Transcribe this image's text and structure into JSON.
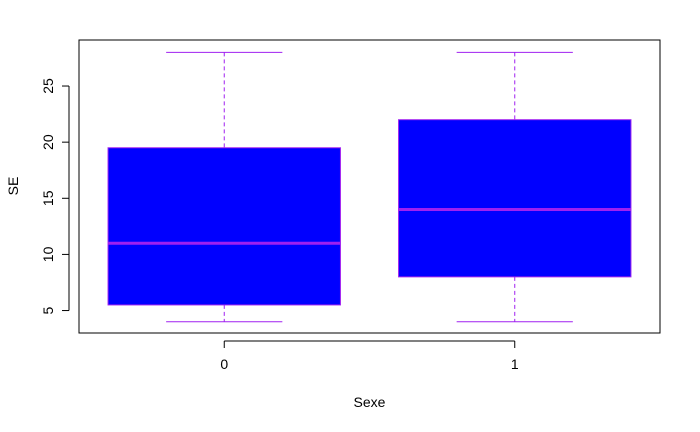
{
  "chart_data": {
    "type": "boxplot",
    "title": "",
    "xlabel": "Sexe",
    "ylabel": "SE",
    "categories": [
      "0",
      "1"
    ],
    "boxes": [
      {
        "category": "0",
        "min": 4,
        "q1": 5.5,
        "median": 11,
        "q3": 19.5,
        "max": 28
      },
      {
        "category": "1",
        "min": 4,
        "q1": 8,
        "median": 14,
        "q3": 22,
        "max": 28
      }
    ],
    "ylim": [
      3,
      29.1
    ],
    "yticks": [
      "5",
      "10",
      "15",
      "20",
      "25"
    ],
    "grid": false,
    "legend": "none",
    "colors": {
      "box_fill": "#0000ff",
      "box_border": "#a020f0",
      "whisker": "#a020f0",
      "axis": "#000000"
    }
  }
}
